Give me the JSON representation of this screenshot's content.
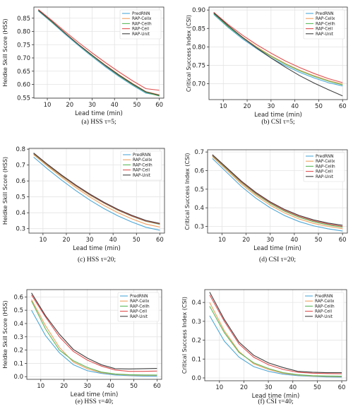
{
  "figure": {
    "xlabel": "Lead time (min)"
  },
  "legend_labels": [
    "PredRNN",
    "RAP-Cellx",
    "RAP-Cellh",
    "RAP-Cell",
    "RAP-Unit"
  ],
  "colors": {
    "PredRNN": "#4ea8d8",
    "RAP-Cellx": "#f0a060",
    "RAP-Cellh": "#5cb85c",
    "RAP-Cell": "#e05050",
    "RAP-Unit": "#404040"
  },
  "chart_data": [
    {
      "type": "line",
      "caption": "(a) HSS τ=5;",
      "xlabel": "Lead time (min)",
      "ylabel": "Heidke Skill Score (HSS)",
      "xlim": [
        4,
        62
      ],
      "ylim": [
        0.548,
        0.892
      ],
      "xticks": [
        10,
        20,
        30,
        40,
        50,
        60
      ],
      "yticks": [
        0.55,
        0.6,
        0.65,
        0.7,
        0.75,
        0.8,
        0.85
      ],
      "ytick_labels": [
        "0.55",
        "0.60",
        "0.65",
        "0.70",
        "0.75",
        "0.80",
        "0.85"
      ],
      "grid": true,
      "legend_position": "top-right",
      "x": [
        6,
        12,
        18,
        24,
        30,
        36,
        42,
        48,
        54,
        60
      ],
      "series": [
        {
          "name": "PredRNN",
          "values": [
            0.877,
            0.834,
            0.789,
            0.746,
            0.705,
            0.666,
            0.63,
            0.597,
            0.567,
            0.558
          ]
        },
        {
          "name": "RAP-Cellx",
          "values": [
            0.88,
            0.838,
            0.794,
            0.751,
            0.711,
            0.673,
            0.637,
            0.604,
            0.573,
            0.561
          ]
        },
        {
          "name": "RAP-Cellh",
          "values": [
            0.879,
            0.836,
            0.792,
            0.749,
            0.708,
            0.67,
            0.633,
            0.6,
            0.57,
            0.556
          ]
        },
        {
          "name": "RAP-Cell",
          "values": [
            0.883,
            0.842,
            0.799,
            0.758,
            0.719,
            0.682,
            0.647,
            0.614,
            0.584,
            0.578
          ]
        },
        {
          "name": "RAP-Unit",
          "values": [
            0.88,
            0.838,
            0.793,
            0.75,
            0.71,
            0.671,
            0.635,
            0.602,
            0.572,
            0.559
          ]
        }
      ]
    },
    {
      "type": "line",
      "caption": "(b) CSI τ=5;",
      "xlabel": "Lead time (min)",
      "ylabel": "Critical Success Index (CSI)",
      "xlim": [
        4,
        62
      ],
      "ylim": [
        0.657,
        0.908
      ],
      "xticks": [
        10,
        20,
        30,
        40,
        50,
        60
      ],
      "yticks": [
        0.7,
        0.75,
        0.8,
        0.85,
        0.9
      ],
      "ytick_labels": [
        "0.70",
        "0.75",
        "0.80",
        "0.85",
        "0.90"
      ],
      "grid": true,
      "legend_position": "top-right",
      "x": [
        6,
        12,
        18,
        24,
        30,
        36,
        42,
        48,
        54,
        60
      ],
      "series": [
        {
          "name": "PredRNN",
          "values": [
            0.888,
            0.853,
            0.822,
            0.795,
            0.77,
            0.749,
            0.731,
            0.716,
            0.703,
            0.694
          ]
        },
        {
          "name": "RAP-Cellx",
          "values": [
            0.891,
            0.857,
            0.827,
            0.8,
            0.776,
            0.755,
            0.737,
            0.722,
            0.709,
            0.699
          ]
        },
        {
          "name": "RAP-Cellh",
          "values": [
            0.89,
            0.855,
            0.825,
            0.798,
            0.774,
            0.753,
            0.735,
            0.72,
            0.707,
            0.697
          ]
        },
        {
          "name": "RAP-Cell",
          "values": [
            0.894,
            0.861,
            0.832,
            0.806,
            0.783,
            0.762,
            0.744,
            0.728,
            0.714,
            0.703
          ]
        },
        {
          "name": "RAP-Unit",
          "values": [
            0.892,
            0.858,
            0.826,
            0.797,
            0.77,
            0.745,
            0.722,
            0.702,
            0.684,
            0.667
          ]
        }
      ]
    },
    {
      "type": "line",
      "caption": "(c) HSS τ=20;",
      "xlabel": "Lead time (min)",
      "ylabel": "Heidke Skill Score (HSS)",
      "xlim": [
        4,
        62
      ],
      "ylim": [
        0.272,
        0.805
      ],
      "xticks": [
        10,
        20,
        30,
        40,
        50,
        60
      ],
      "yticks": [
        0.3,
        0.4,
        0.5,
        0.6,
        0.7,
        0.8
      ],
      "ytick_labels": [
        "0.3",
        "0.4",
        "0.5",
        "0.6",
        "0.7",
        "0.8"
      ],
      "grid": true,
      "legend_position": "top-right",
      "x": [
        6,
        12,
        18,
        24,
        30,
        36,
        42,
        48,
        54,
        60
      ],
      "series": [
        {
          "name": "PredRNN",
          "values": [
            0.75,
            0.675,
            0.605,
            0.54,
            0.48,
            0.427,
            0.381,
            0.342,
            0.309,
            0.29
          ]
        },
        {
          "name": "RAP-Cellx",
          "values": [
            0.765,
            0.692,
            0.623,
            0.559,
            0.5,
            0.447,
            0.401,
            0.362,
            0.329,
            0.31
          ]
        },
        {
          "name": "RAP-Cellh",
          "values": [
            0.77,
            0.698,
            0.631,
            0.569,
            0.512,
            0.461,
            0.416,
            0.378,
            0.346,
            0.327
          ]
        },
        {
          "name": "RAP-Cell",
          "values": [
            0.773,
            0.701,
            0.634,
            0.571,
            0.514,
            0.463,
            0.418,
            0.38,
            0.348,
            0.33
          ]
        },
        {
          "name": "RAP-Unit",
          "values": [
            0.776,
            0.704,
            0.637,
            0.575,
            0.518,
            0.467,
            0.422,
            0.384,
            0.352,
            0.333
          ]
        }
      ]
    },
    {
      "type": "line",
      "caption": "(d) CSI τ=20;",
      "xlabel": "Lead time (min)",
      "ylabel": "Critical Success Index (CSI)",
      "xlim": [
        4,
        62
      ],
      "ylim": [
        0.264,
        0.712
      ],
      "xticks": [
        10,
        20,
        30,
        40,
        50,
        60
      ],
      "yticks": [
        0.3,
        0.4,
        0.5,
        0.6,
        0.7
      ],
      "ytick_labels": [
        "0.3",
        "0.4",
        "0.5",
        "0.6",
        "0.7"
      ],
      "grid": true,
      "legend_position": "top-right",
      "x": [
        6,
        12,
        18,
        24,
        30,
        36,
        42,
        48,
        54,
        60
      ],
      "series": [
        {
          "name": "PredRNN",
          "values": [
            0.665,
            0.59,
            0.515,
            0.452,
            0.4,
            0.358,
            0.326,
            0.303,
            0.287,
            0.275
          ]
        },
        {
          "name": "RAP-Cellx",
          "values": [
            0.675,
            0.602,
            0.528,
            0.466,
            0.414,
            0.372,
            0.34,
            0.316,
            0.3,
            0.288
          ]
        },
        {
          "name": "RAP-Cellh",
          "values": [
            0.68,
            0.608,
            0.536,
            0.474,
            0.423,
            0.381,
            0.349,
            0.325,
            0.308,
            0.296
          ]
        },
        {
          "name": "RAP-Cell",
          "values": [
            0.683,
            0.612,
            0.54,
            0.479,
            0.428,
            0.386,
            0.354,
            0.33,
            0.313,
            0.3
          ]
        },
        {
          "name": "RAP-Unit",
          "values": [
            0.686,
            0.615,
            0.544,
            0.483,
            0.432,
            0.391,
            0.359,
            0.335,
            0.318,
            0.306
          ]
        }
      ]
    },
    {
      "type": "line",
      "caption": "(e) HSS τ=40;",
      "xlabel": "Lead time (min)",
      "ylabel": "Heidke Skill Score (HSS)",
      "xlim": [
        4,
        62
      ],
      "ylim": [
        -0.02,
        0.655
      ],
      "xticks": [
        10,
        20,
        30,
        40,
        50,
        60
      ],
      "yticks": [
        0.0,
        0.1,
        0.2,
        0.3,
        0.4,
        0.5,
        0.6
      ],
      "ytick_labels": [
        "0.0",
        "0.1",
        "0.2",
        "0.3",
        "0.4",
        "0.5",
        "0.6"
      ],
      "grid": true,
      "legend_position": "top-right",
      "x": [
        6,
        12,
        18,
        24,
        30,
        36,
        42,
        48,
        54,
        60
      ],
      "series": [
        {
          "name": "PredRNN",
          "values": [
            0.5,
            0.31,
            0.18,
            0.09,
            0.045,
            0.025,
            0.012,
            0.008,
            0.005,
            0.004
          ]
        },
        {
          "name": "RAP-Cellx",
          "values": [
            0.58,
            0.385,
            0.22,
            0.11,
            0.06,
            0.03,
            0.018,
            0.012,
            0.01,
            0.01
          ]
        },
        {
          "name": "RAP-Cellh",
          "values": [
            0.57,
            0.36,
            0.2,
            0.12,
            0.07,
            0.035,
            0.02,
            0.015,
            0.013,
            0.012
          ]
        },
        {
          "name": "RAP-Cell",
          "values": [
            0.615,
            0.45,
            0.3,
            0.19,
            0.125,
            0.08,
            0.05,
            0.04,
            0.04,
            0.042
          ]
        },
        {
          "name": "RAP-Unit",
          "values": [
            0.63,
            0.46,
            0.32,
            0.205,
            0.14,
            0.09,
            0.06,
            0.058,
            0.06,
            0.062
          ]
        }
      ]
    },
    {
      "type": "line",
      "caption": "(f) CSI τ=40;",
      "xlabel": "Lead time (min)",
      "ylabel": "Critical Success Index (CSI)",
      "xlim": [
        4,
        62
      ],
      "ylim": [
        -0.015,
        0.468
      ],
      "xticks": [
        10,
        20,
        30,
        40,
        50,
        60
      ],
      "yticks": [
        0.0,
        0.1,
        0.2,
        0.3,
        0.4
      ],
      "ytick_labels": [
        "0.0",
        "0.1",
        "0.2",
        "0.3",
        "0.4"
      ],
      "grid": true,
      "legend_position": "top-right",
      "x": [
        6,
        12,
        18,
        24,
        30,
        36,
        42,
        48,
        54,
        60
      ],
      "series": [
        {
          "name": "PredRNN",
          "values": [
            0.33,
            0.195,
            0.11,
            0.06,
            0.035,
            0.02,
            0.012,
            0.008,
            0.005,
            0.004
          ]
        },
        {
          "name": "RAP-Cellx",
          "values": [
            0.4,
            0.25,
            0.14,
            0.075,
            0.045,
            0.025,
            0.015,
            0.01,
            0.008,
            0.007
          ]
        },
        {
          "name": "RAP-Cellh",
          "values": [
            0.38,
            0.24,
            0.135,
            0.08,
            0.05,
            0.028,
            0.017,
            0.012,
            0.01,
            0.009
          ]
        },
        {
          "name": "RAP-Cell",
          "values": [
            0.44,
            0.3,
            0.18,
            0.11,
            0.07,
            0.045,
            0.03,
            0.025,
            0.023,
            0.022
          ]
        },
        {
          "name": "RAP-Unit",
          "values": [
            0.455,
            0.31,
            0.19,
            0.12,
            0.08,
            0.055,
            0.035,
            0.03,
            0.028,
            0.028
          ]
        }
      ]
    }
  ]
}
